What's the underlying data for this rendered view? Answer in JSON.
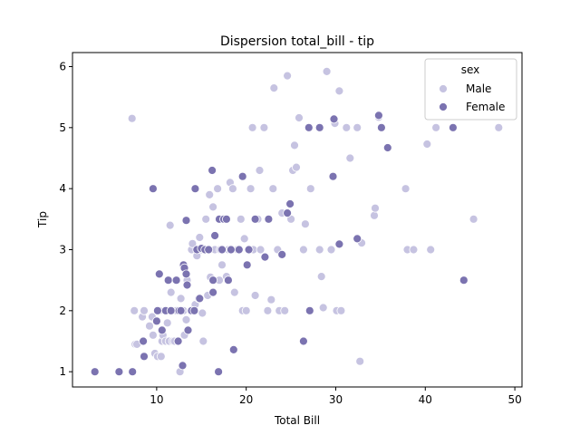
{
  "chart_data": {
    "type": "scatter",
    "title": "Dispersion total_bill - tip",
    "xlabel": "Total Bill",
    "ylabel": "Tip",
    "xlim": [
      0.6,
      50.8
    ],
    "ylim": [
      0.75,
      6.23
    ],
    "xticks": [
      10,
      20,
      30,
      40,
      50
    ],
    "yticks": [
      1,
      2,
      3,
      4,
      5,
      6
    ],
    "grid": false,
    "legend": {
      "title": "sex",
      "placement": "top-right"
    },
    "series": [
      {
        "name": "Male",
        "color": "#c6c3e1",
        "points": [
          [
            7.25,
            5.15
          ],
          [
            7.5,
            2.0
          ],
          [
            7.6,
            1.45
          ],
          [
            7.8,
            1.45
          ],
          [
            8.4,
            1.9
          ],
          [
            8.6,
            2.0
          ],
          [
            9.2,
            1.75
          ],
          [
            9.5,
            1.9
          ],
          [
            9.6,
            1.6
          ],
          [
            9.8,
            1.3
          ],
          [
            10.1,
            1.25
          ],
          [
            10.3,
            2.0
          ],
          [
            10.5,
            1.25
          ],
          [
            10.6,
            1.5
          ],
          [
            10.7,
            1.6
          ],
          [
            11.0,
            1.5
          ],
          [
            11.2,
            1.8
          ],
          [
            11.4,
            1.5
          ],
          [
            11.5,
            3.4
          ],
          [
            11.6,
            2.3
          ],
          [
            11.8,
            1.5
          ],
          [
            12.0,
            1.5
          ],
          [
            12.2,
            2.0
          ],
          [
            12.4,
            1.5
          ],
          [
            12.6,
            1.0
          ],
          [
            12.7,
            2.2
          ],
          [
            13.0,
            2.0
          ],
          [
            13.1,
            1.6
          ],
          [
            13.3,
            1.85
          ],
          [
            13.4,
            2.5
          ],
          [
            13.8,
            2.0
          ],
          [
            13.9,
            3.0
          ],
          [
            14.0,
            3.1
          ],
          [
            14.2,
            2.0
          ],
          [
            14.3,
            2.1
          ],
          [
            14.5,
            2.9
          ],
          [
            14.7,
            2.2
          ],
          [
            14.8,
            3.2
          ],
          [
            15.0,
            3.0
          ],
          [
            15.1,
            1.96
          ],
          [
            15.2,
            1.5
          ],
          [
            15.4,
            3.0
          ],
          [
            15.5,
            3.5
          ],
          [
            15.7,
            2.25
          ],
          [
            15.9,
            3.9
          ],
          [
            16.0,
            2.55
          ],
          [
            16.3,
            3.7
          ],
          [
            16.5,
            3.0
          ],
          [
            16.8,
            4.0
          ],
          [
            17.0,
            2.5
          ],
          [
            17.1,
            3.0
          ],
          [
            17.3,
            2.75
          ],
          [
            17.5,
            3.5
          ],
          [
            17.8,
            2.56
          ],
          [
            18.0,
            3.0
          ],
          [
            18.2,
            4.1
          ],
          [
            18.3,
            3.0
          ],
          [
            18.5,
            4.0
          ],
          [
            18.7,
            2.3
          ],
          [
            19.0,
            3.0
          ],
          [
            19.4,
            3.5
          ],
          [
            19.6,
            2.0
          ],
          [
            19.8,
            3.18
          ],
          [
            20.0,
            2.0
          ],
          [
            20.3,
            3.0
          ],
          [
            20.5,
            4.0
          ],
          [
            20.7,
            5.0
          ],
          [
            20.8,
            3.0
          ],
          [
            21.0,
            2.25
          ],
          [
            21.3,
            3.5
          ],
          [
            21.5,
            4.3
          ],
          [
            21.6,
            3.0
          ],
          [
            22.0,
            5.0
          ],
          [
            22.4,
            2.0
          ],
          [
            22.8,
            2.18
          ],
          [
            23.0,
            4.0
          ],
          [
            23.1,
            5.65
          ],
          [
            23.5,
            3.0
          ],
          [
            23.7,
            2.0
          ],
          [
            24.0,
            3.6
          ],
          [
            24.3,
            2.0
          ],
          [
            24.6,
            5.85
          ],
          [
            25.0,
            3.5
          ],
          [
            25.2,
            4.3
          ],
          [
            25.4,
            4.71
          ],
          [
            25.6,
            4.35
          ],
          [
            25.9,
            5.16
          ],
          [
            26.4,
            3.0
          ],
          [
            26.6,
            3.42
          ],
          [
            27.2,
            4.0
          ],
          [
            28.2,
            3.0
          ],
          [
            28.4,
            2.56
          ],
          [
            28.6,
            2.05
          ],
          [
            29.0,
            5.92
          ],
          [
            29.5,
            3.0
          ],
          [
            29.9,
            5.07
          ],
          [
            30.1,
            2.0
          ],
          [
            30.4,
            5.6
          ],
          [
            30.6,
            2.0
          ],
          [
            31.2,
            5.0
          ],
          [
            31.6,
            4.5
          ],
          [
            32.4,
            5.0
          ],
          [
            32.7,
            1.17
          ],
          [
            32.9,
            3.11
          ],
          [
            34.3,
            3.56
          ],
          [
            34.4,
            3.68
          ],
          [
            34.8,
            5.17
          ],
          [
            37.8,
            4.0
          ],
          [
            38.0,
            3.0
          ],
          [
            38.7,
            3.0
          ],
          [
            40.2,
            4.73
          ],
          [
            40.6,
            3.0
          ],
          [
            41.2,
            5.0
          ],
          [
            45.4,
            3.5
          ],
          [
            48.2,
            5.0
          ]
        ]
      },
      {
        "name": "Female",
        "color": "#7b73b0",
        "points": [
          [
            3.1,
            1.0
          ],
          [
            5.8,
            1.0
          ],
          [
            7.3,
            1.0
          ],
          [
            8.5,
            1.5
          ],
          [
            8.6,
            1.25
          ],
          [
            9.6,
            4.0
          ],
          [
            10.0,
            1.83
          ],
          [
            10.1,
            2.0
          ],
          [
            10.3,
            2.6
          ],
          [
            10.6,
            1.68
          ],
          [
            11.0,
            2.0
          ],
          [
            11.3,
            2.5
          ],
          [
            11.6,
            2.0
          ],
          [
            12.2,
            2.5
          ],
          [
            12.4,
            1.5
          ],
          [
            12.5,
            2.0
          ],
          [
            12.7,
            2.0
          ],
          [
            12.9,
            1.1
          ],
          [
            13.0,
            2.75
          ],
          [
            13.1,
            2.7
          ],
          [
            13.3,
            3.48
          ],
          [
            13.3,
            2.6
          ],
          [
            13.4,
            2.42
          ],
          [
            13.5,
            1.68
          ],
          [
            13.9,
            2.0
          ],
          [
            14.2,
            2.0
          ],
          [
            14.3,
            4.0
          ],
          [
            14.5,
            3.0
          ],
          [
            14.8,
            2.2
          ],
          [
            15.0,
            3.02
          ],
          [
            15.4,
            3.0
          ],
          [
            15.8,
            3.0
          ],
          [
            16.2,
            4.3
          ],
          [
            16.3,
            2.5
          ],
          [
            16.3,
            2.3
          ],
          [
            16.5,
            3.23
          ],
          [
            16.9,
            1.0
          ],
          [
            17.0,
            3.5
          ],
          [
            17.3,
            3.0
          ],
          [
            17.5,
            3.5
          ],
          [
            17.8,
            3.5
          ],
          [
            18.0,
            2.5
          ],
          [
            18.3,
            3.0
          ],
          [
            18.6,
            1.36
          ],
          [
            19.2,
            3.0
          ],
          [
            19.6,
            4.2
          ],
          [
            20.1,
            2.75
          ],
          [
            20.3,
            3.0
          ],
          [
            21.0,
            3.5
          ],
          [
            22.1,
            2.88
          ],
          [
            22.5,
            3.5
          ],
          [
            24.0,
            2.92
          ],
          [
            24.6,
            3.6
          ],
          [
            24.9,
            3.75
          ],
          [
            26.4,
            1.5
          ],
          [
            27.0,
            5.0
          ],
          [
            27.1,
            2.0
          ],
          [
            28.2,
            5.0
          ],
          [
            29.7,
            4.2
          ],
          [
            29.8,
            5.14
          ],
          [
            30.4,
            3.09
          ],
          [
            32.4,
            3.18
          ],
          [
            34.8,
            5.2
          ],
          [
            35.1,
            5.0
          ],
          [
            35.8,
            4.67
          ],
          [
            43.1,
            5.0
          ],
          [
            44.3,
            2.5
          ]
        ]
      }
    ]
  }
}
